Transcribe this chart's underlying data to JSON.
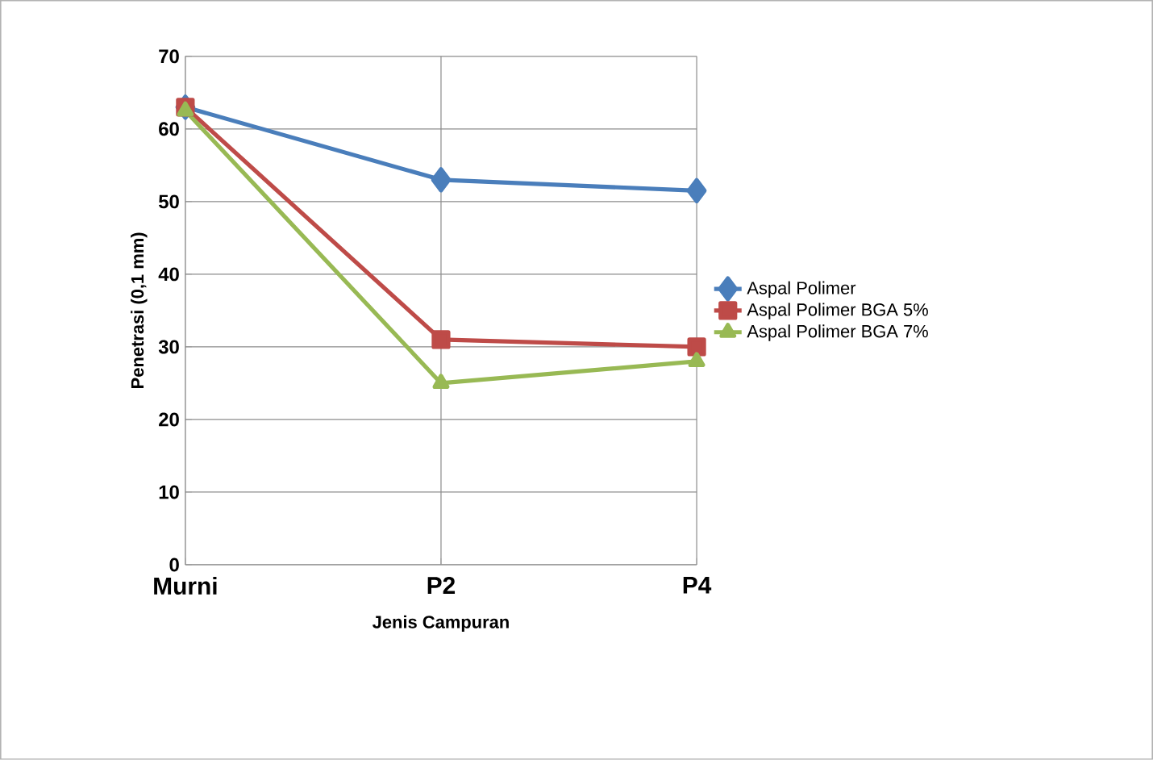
{
  "chart_data": {
    "type": "line",
    "xlabel": "Jenis Campuran",
    "ylabel": "Penetrasi (0,1 mm)",
    "categories": [
      "Murni",
      "P2",
      "P4"
    ],
    "series": [
      {
        "name": "Aspal Polimer",
        "color": "#4a7ebb",
        "marker": "diamond",
        "values": [
          63,
          53,
          51.5
        ]
      },
      {
        "name": "Aspal Polimer BGA 5%",
        "color": "#be4b48",
        "marker": "square",
        "values": [
          63,
          31,
          30
        ]
      },
      {
        "name": "Aspal Polimer BGA 7%",
        "color": "#98b954",
        "marker": "triangle",
        "values": [
          62.5,
          25,
          28
        ]
      }
    ],
    "ylim": [
      0,
      70
    ],
    "yticks": [
      0,
      10,
      20,
      30,
      40,
      50,
      60,
      70
    ],
    "grid": true,
    "legend": "right"
  }
}
